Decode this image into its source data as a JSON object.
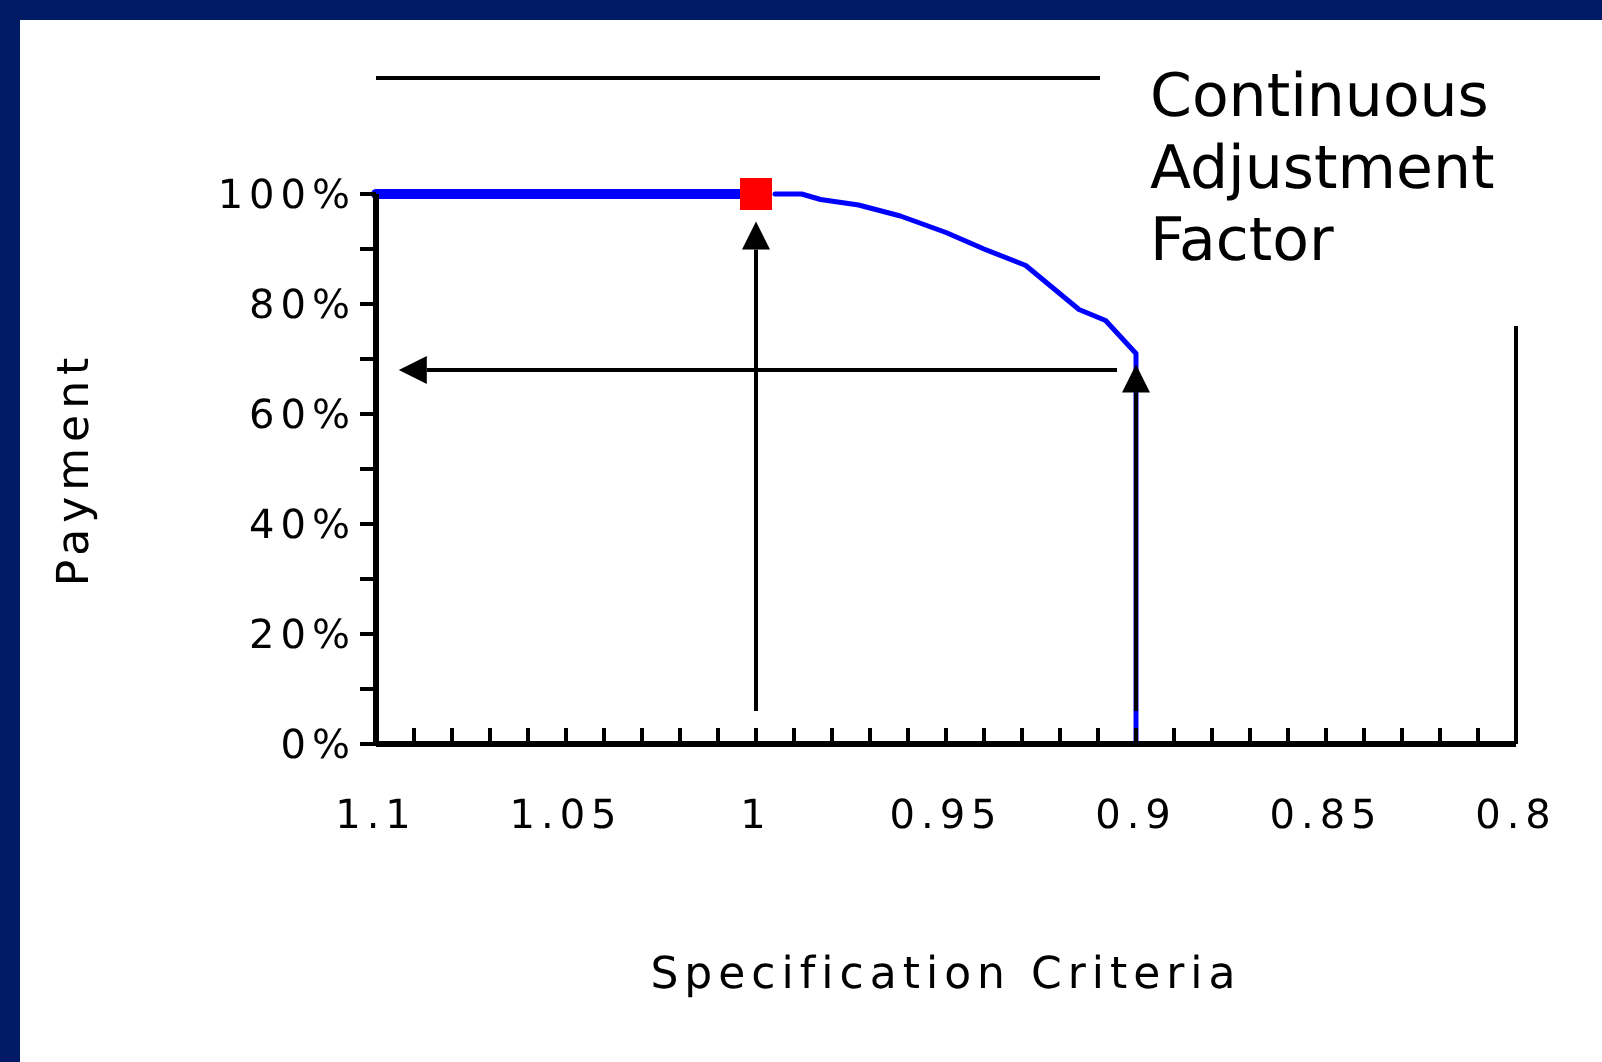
{
  "chart_data": {
    "type": "line",
    "xlabel": "Specification Criteria",
    "ylabel": "Payment",
    "xlim": [
      1.1,
      0.8
    ],
    "xticks": [
      1.1,
      {
        "value": 1.09,
        "label": null
      },
      {
        "value": 1.08,
        "label": null
      },
      {
        "value": 1.07,
        "label": null
      },
      {
        "value": 1.06,
        "label": null
      },
      1.05,
      {
        "value": 1.04,
        "label": null
      },
      {
        "value": 1.03,
        "label": null
      },
      {
        "value": 1.02,
        "label": null
      },
      {
        "value": 1.01,
        "label": null
      },
      1,
      {
        "value": 0.99,
        "label": null
      },
      {
        "value": 0.98,
        "label": null
      },
      {
        "value": 0.97,
        "label": null
      },
      {
        "value": 0.96,
        "label": null
      },
      0.95,
      {
        "value": 0.94,
        "label": null
      },
      {
        "value": 0.93,
        "label": null
      },
      {
        "value": 0.92,
        "label": null
      },
      {
        "value": 0.91,
        "label": null
      },
      0.9,
      {
        "value": 0.89,
        "label": null
      },
      {
        "value": 0.88,
        "label": null
      },
      {
        "value": 0.87,
        "label": null
      },
      {
        "value": 0.86,
        "label": null
      },
      0.85,
      {
        "value": 0.84,
        "label": null
      },
      {
        "value": 0.83,
        "label": null
      },
      {
        "value": 0.82,
        "label": null
      },
      {
        "value": 0.81,
        "label": null
      },
      0.8
    ],
    "ylim": [
      0,
      100
    ],
    "yticks": [
      {
        "value": 0,
        "label": "0%"
      },
      {
        "value": 10,
        "label": null
      },
      {
        "value": 20,
        "label": "20%"
      },
      {
        "value": 30,
        "label": null
      },
      {
        "value": 40,
        "label": "40%"
      },
      {
        "value": 50,
        "label": null
      },
      {
        "value": 60,
        "label": "60%"
      },
      {
        "value": 70,
        "label": null
      },
      {
        "value": 80,
        "label": "80%"
      },
      {
        "value": 90,
        "label": null
      },
      {
        "value": 100,
        "label": "100%"
      }
    ],
    "marker": "none",
    "line_style": "solid",
    "annotations": [
      "Continuous Adjustment Factor"
    ],
    "series": [
      {
        "color": "#0000ff",
        "x": [
          1.1,
          1.0
        ],
        "values": [
          100,
          100
        ]
      },
      {
        "color": "#0000ff",
        "x": [
          0.995,
          0.988,
          0.983,
          0.973,
          0.962,
          0.95,
          0.94,
          0.929,
          0.915,
          0.908,
          0.9,
          0.9
        ],
        "values": [
          100,
          100,
          99,
          98,
          96,
          93,
          90,
          87,
          79,
          77,
          71,
          0
        ]
      },
      {
        "type": "scatter",
        "color": "#ff0000",
        "marker": "square",
        "x": [
          1.0
        ],
        "values": [
          100
        ]
      }
    ]
  }
}
